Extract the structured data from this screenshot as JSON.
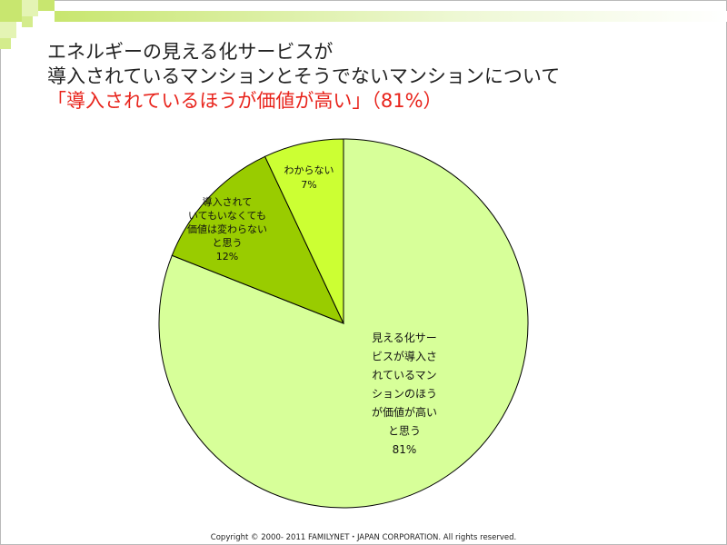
{
  "title": {
    "line1": "エネルギーの見える化サービスが",
    "line2": "導入されているマンションとそうでないマンションについて",
    "highlight": "「導入されているほうが価値が高い」",
    "highlight_suffix": "（81%）"
  },
  "colors": {
    "slice1": "#d7ff99",
    "slice2": "#99cc00",
    "slice3": "#ccff33",
    "highlight_text": "#e8231b",
    "deco_green": "#c4e46e"
  },
  "chart_data": {
    "type": "pie",
    "title": "",
    "slices": [
      {
        "label": [
          "見える化サー",
          "ビスが導入さ",
          "れているマン",
          "ションのほう",
          "が価値が高い",
          "と思う"
        ],
        "value": 81,
        "value_label": "81%"
      },
      {
        "label": [
          "導入されて",
          "いてもいなくても",
          "価値は変わらない",
          "と思う"
        ],
        "value": 12,
        "value_label": "12%"
      },
      {
        "label": [
          "わからない"
        ],
        "value": 7,
        "value_label": "7%"
      }
    ]
  },
  "footer": "Copyright © 2000- 2011 FAMILYNET・JAPAN CORPORATION. All rights reserved."
}
